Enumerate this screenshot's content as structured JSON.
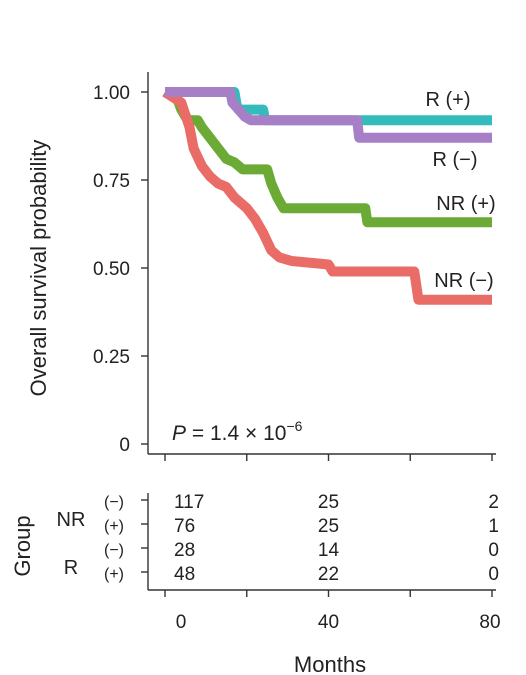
{
  "chart_data": {
    "type": "line",
    "subtype": "kaplan-meier",
    "ylabel": "Overall survival probability",
    "xlabel": "Months",
    "xlim": [
      0,
      80
    ],
    "ylim": [
      0,
      1.0
    ],
    "y_ticks": [
      "0",
      "0.25",
      "0.50",
      "0.75",
      "1.00"
    ],
    "y_tick_values": [
      0,
      0.25,
      0.5,
      0.75,
      1.0
    ],
    "x_ticks": [
      "0",
      "40",
      "80"
    ],
    "x_tick_values": [
      0,
      40,
      80
    ],
    "annotation": {
      "prefix": "P",
      "text": " = 1.4 × 10",
      "exponent": "−6"
    },
    "grid": false,
    "series": [
      {
        "name": "R (+)",
        "color": "#34bcbc",
        "points": [
          [
            0,
            1.0
          ],
          [
            17,
            1.0
          ],
          [
            17.5,
            0.965
          ],
          [
            18,
            0.95
          ],
          [
            24,
            0.95
          ],
          [
            24.5,
            0.92
          ],
          [
            80,
            0.92
          ]
        ]
      },
      {
        "name": "R (−)",
        "color": "#a77fc6",
        "points": [
          [
            0,
            1.0
          ],
          [
            16,
            1.0
          ],
          [
            16.5,
            0.97
          ],
          [
            18,
            0.95
          ],
          [
            19.5,
            0.93
          ],
          [
            21,
            0.92
          ],
          [
            47,
            0.92
          ],
          [
            47.5,
            0.87
          ],
          [
            80,
            0.87
          ]
        ]
      },
      {
        "name": "NR (+)",
        "color": "#6caa36",
        "points": [
          [
            0,
            1.0
          ],
          [
            3,
            0.98
          ],
          [
            4,
            0.95
          ],
          [
            5,
            0.93
          ],
          [
            6,
            0.92
          ],
          [
            8,
            0.92
          ],
          [
            9,
            0.9
          ],
          [
            11,
            0.87
          ],
          [
            13,
            0.84
          ],
          [
            15,
            0.81
          ],
          [
            17,
            0.8
          ],
          [
            19,
            0.78
          ],
          [
            25,
            0.78
          ],
          [
            26,
            0.74
          ],
          [
            27.5,
            0.7
          ],
          [
            29,
            0.67
          ],
          [
            49,
            0.67
          ],
          [
            49.5,
            0.63
          ],
          [
            80,
            0.63
          ]
        ]
      },
      {
        "name": "NR (−)",
        "color": "#ea6c66",
        "points": [
          [
            0,
            1.0
          ],
          [
            4,
            0.97
          ],
          [
            6,
            0.9
          ],
          [
            7,
            0.84
          ],
          [
            9,
            0.79
          ],
          [
            11,
            0.76
          ],
          [
            13,
            0.74
          ],
          [
            15,
            0.73
          ],
          [
            17,
            0.7
          ],
          [
            20,
            0.67
          ],
          [
            22,
            0.64
          ],
          [
            24,
            0.6
          ],
          [
            26,
            0.55
          ],
          [
            28,
            0.53
          ],
          [
            31,
            0.52
          ],
          [
            40,
            0.51
          ],
          [
            41,
            0.49
          ],
          [
            61,
            0.49
          ],
          [
            62,
            0.41
          ],
          [
            80,
            0.41
          ]
        ]
      }
    ],
    "risk_table": {
      "title": "Group",
      "col_values": [
        0,
        40,
        80
      ],
      "groups": [
        {
          "label": "NR",
          "rows": [
            {
              "sign": "(−)",
              "counts": [
                "117",
                "25",
                "2"
              ]
            },
            {
              "sign": "(+)",
              "counts": [
                "76",
                "25",
                "1"
              ]
            }
          ]
        },
        {
          "label": "R",
          "rows": [
            {
              "sign": "(−)",
              "counts": [
                "28",
                "14",
                "0"
              ]
            },
            {
              "sign": "(+)",
              "counts": [
                "48",
                "22",
                "0"
              ]
            }
          ]
        }
      ]
    }
  }
}
